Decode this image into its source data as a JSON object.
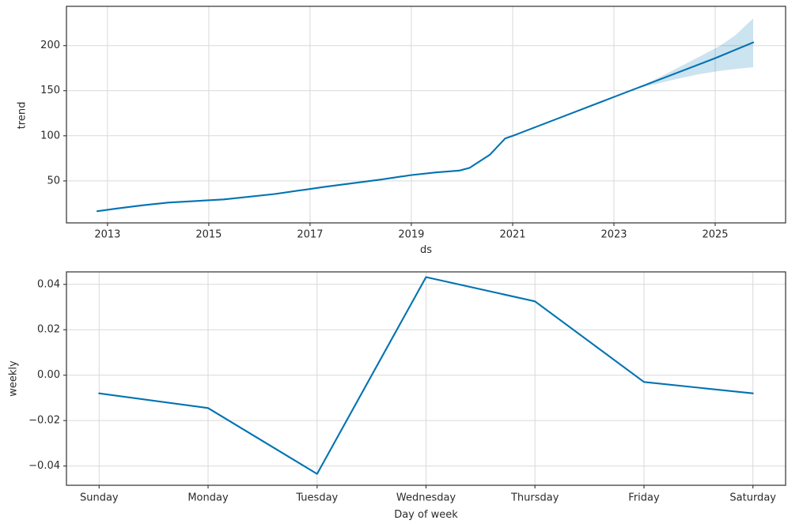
{
  "figure": {
    "background": "#ffffff",
    "accent_color": "#0072B2",
    "band_color": "#0072B2",
    "band_opacity": 0.2,
    "grid_color": "#d9d9d9",
    "spine_color": "#3f3f3f",
    "text_color": "#2b2b2b"
  },
  "chart_data": [
    {
      "type": "line",
      "name": "trend-component",
      "title": "",
      "xlabel": "ds",
      "ylabel": "trend",
      "xlim": [
        2012.19,
        2026.39
      ],
      "ylim": [
        3.5,
        243.5
      ],
      "grid": true,
      "legend": "none",
      "xticks": [
        {
          "v": 2013,
          "label": "2013"
        },
        {
          "v": 2015,
          "label": "2015"
        },
        {
          "v": 2017,
          "label": "2017"
        },
        {
          "v": 2019,
          "label": "2019"
        },
        {
          "v": 2021,
          "label": "2021"
        },
        {
          "v": 2023,
          "label": "2023"
        },
        {
          "v": 2025,
          "label": "2025"
        }
      ],
      "yticks": [
        {
          "v": 50,
          "label": "50"
        },
        {
          "v": 100,
          "label": "100"
        },
        {
          "v": 150,
          "label": "150"
        },
        {
          "v": 200,
          "label": "200"
        }
      ],
      "series": [
        {
          "name": "trend",
          "color": "#0072B2",
          "points": [
            [
              2012.8,
              16.5
            ],
            [
              2013.2,
              19.5
            ],
            [
              2013.7,
              23.0
            ],
            [
              2014.2,
              26.0
            ],
            [
              2015.3,
              29.5
            ],
            [
              2016.3,
              35.5
            ],
            [
              2017.3,
              43.5
            ],
            [
              2018.4,
              51.5
            ],
            [
              2019.0,
              56.5
            ],
            [
              2019.5,
              59.5
            ],
            [
              2019.95,
              61.5
            ],
            [
              2020.15,
              64.5
            ],
            [
              2020.55,
              79.0
            ],
            [
              2020.85,
              97.0
            ],
            [
              2021.05,
              101.0
            ],
            [
              2022.0,
              121.5
            ],
            [
              2023.0,
              143.0
            ],
            [
              2024.0,
              164.5
            ],
            [
              2025.0,
              186.0
            ],
            [
              2025.75,
              203.5
            ]
          ]
        }
      ],
      "band": {
        "name": "trend-uncertainty-interval",
        "points": [
          [
            2023.4,
            151.5,
            151.5
          ],
          [
            2023.8,
            157.0,
            162.0
          ],
          [
            2024.2,
            162.5,
            173.5
          ],
          [
            2024.7,
            168.5,
            188.0
          ],
          [
            2025.1,
            172.0,
            200.0
          ],
          [
            2025.4,
            174.0,
            211.5
          ],
          [
            2025.75,
            176.0,
            230.0
          ]
        ]
      }
    },
    {
      "type": "line",
      "name": "weekly-component",
      "title": "",
      "xlabel": "Day of week",
      "ylabel": "weekly",
      "categories": [
        "Sunday",
        "Monday",
        "Tuesday",
        "Wednesday",
        "Thursday",
        "Friday",
        "Saturday"
      ],
      "values": [
        -0.008,
        -0.0145,
        -0.0435,
        0.0432,
        0.0325,
        -0.003,
        -0.008
      ],
      "series_name": "weekly",
      "series_color": "#0072B2",
      "xlim": [
        -0.3,
        6.3
      ],
      "ylim": [
        -0.0485,
        0.0455
      ],
      "grid": true,
      "legend": "none",
      "yticks": [
        {
          "v": -0.04,
          "label": "−0.04"
        },
        {
          "v": -0.02,
          "label": "−0.02"
        },
        {
          "v": 0.0,
          "label": "0.00"
        },
        {
          "v": 0.02,
          "label": "0.02"
        },
        {
          "v": 0.04,
          "label": "0.04"
        }
      ]
    }
  ]
}
